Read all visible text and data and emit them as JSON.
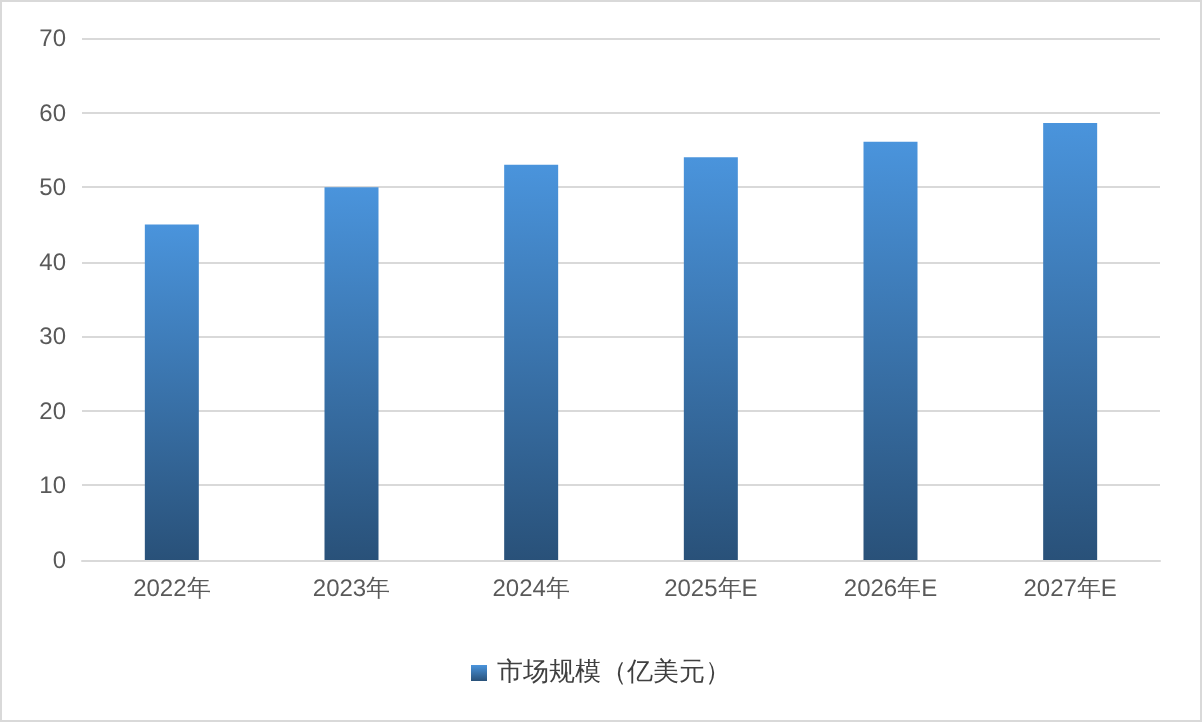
{
  "chart_data": {
    "type": "bar",
    "categories": [
      "2022年",
      "2023年",
      "2024年",
      "2025年E",
      "2026年E",
      "2027年E"
    ],
    "series": [
      {
        "name": "市场规模（亿美元）",
        "color": "#4a94dc",
        "values": [
          45,
          50,
          53,
          54,
          56.1,
          58.6
        ]
      }
    ],
    "ylim": [
      0,
      70
    ],
    "yticks": [
      0,
      10,
      20,
      30,
      40,
      50,
      60,
      70
    ],
    "grid": "y",
    "legend": "bottom"
  }
}
